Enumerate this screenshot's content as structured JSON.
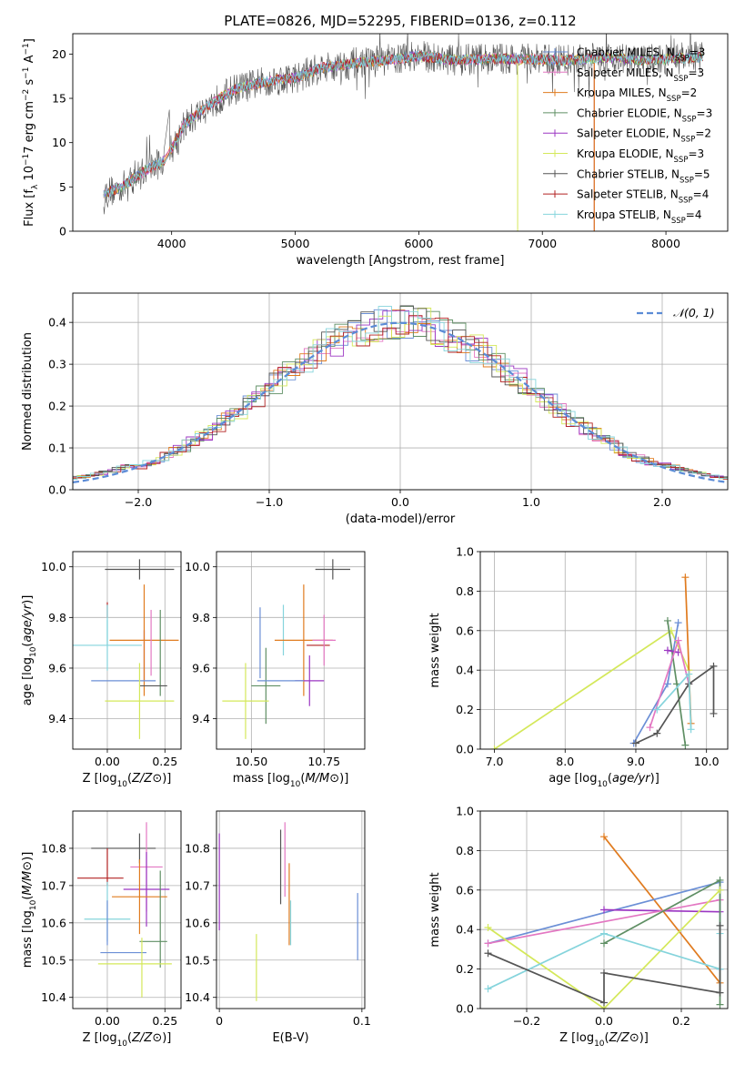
{
  "figure": {
    "title": "PLATE=0826, MJD=52295, FIBERID=0136, z=0.112"
  },
  "colors": {
    "Chabrier MILES": "#6b8fd6",
    "Salpeter MILES": "#e377c2",
    "Kroupa MILES": "#e07b1f",
    "Chabrier ELODIE": "#5f8f64",
    "Salpeter ELODIE": "#9b36c2",
    "Kroupa ELODIE": "#d4e85a",
    "Chabrier STELIB": "#555555",
    "Salpeter STELIB": "#b22222",
    "Kroupa STELIB": "#85d4dc",
    "gaussian": "#5b8bd6"
  },
  "legend": {
    "spectrum": [
      {
        "model": "Chabrier MILES",
        "label": "Chabrier MILES, N",
        "sub": "SSP",
        "tail": "=3"
      },
      {
        "model": "Salpeter MILES",
        "label": "Salpeter MILES, N",
        "sub": "SSP",
        "tail": "=3"
      },
      {
        "model": "Kroupa MILES",
        "label": "Kroupa MILES, N",
        "sub": "SSP",
        "tail": "=2"
      },
      {
        "model": "Chabrier ELODIE",
        "label": "Chabrier ELODIE, N",
        "sub": "SSP",
        "tail": "=3"
      },
      {
        "model": "Salpeter ELODIE",
        "label": "Salpeter ELODIE, N",
        "sub": "SSP",
        "tail": "=2"
      },
      {
        "model": "Kroupa ELODIE",
        "label": "Kroupa ELODIE, N",
        "sub": "SSP",
        "tail": "=3"
      },
      {
        "model": "Chabrier STELIB",
        "label": "Chabrier STELIB, N",
        "sub": "SSP",
        "tail": "=5"
      },
      {
        "model": "Salpeter STELIB",
        "label": "Salpeter STELIB, N",
        "sub": "SSP",
        "tail": "=4"
      },
      {
        "model": "Kroupa STELIB",
        "label": "Kroupa STELIB, N",
        "sub": "SSP",
        "tail": "=4"
      }
    ],
    "histogram": "𝒩(0, 1)"
  },
  "chart_data": [
    {
      "id": "spectrum",
      "type": "line",
      "xlabel": "wavelength [Angstrom, rest frame]",
      "ylabel": "Flux [f_λ 10^-17 erg cm^-2 s^-1 A^-1]",
      "xlim": [
        3200,
        8500
      ],
      "ylim": [
        0,
        22.3
      ],
      "xticks": [
        4000,
        5000,
        6000,
        7000,
        8000
      ],
      "yticks": [
        0,
        5,
        10,
        15,
        20
      ],
      "grid": false,
      "legend_position": "right",
      "continuum_approx": {
        "x": [
          3450,
          3600,
          3800,
          3950,
          4100,
          4300,
          4500,
          4800,
          5000,
          5200,
          5500,
          5800,
          6000,
          6300,
          6600,
          6900,
          7200,
          7500,
          7800,
          8100,
          8300
        ],
        "y": [
          4.2,
          5.0,
          7.0,
          8.0,
          12.0,
          14.2,
          16.0,
          17.0,
          17.3,
          18.4,
          19.0,
          19.4,
          19.8,
          19.3,
          19.5,
          19.4,
          19.3,
          19.6,
          19.3,
          19.5,
          19.7
        ]
      },
      "dropouts": [
        {
          "x": 6800,
          "model": "Kroupa ELODIE"
        },
        {
          "x": 7420,
          "model": "Salpeter STELIB"
        },
        {
          "x": 7420,
          "model": "Kroupa MILES"
        }
      ]
    },
    {
      "id": "residual_histogram",
      "type": "bar",
      "xlabel": "(data-model)/error",
      "ylabel": "Normed distribution",
      "xlim": [
        -2.5,
        2.5
      ],
      "ylim": [
        0,
        0.47
      ],
      "xticks": [
        -2,
        -1,
        0,
        1,
        2
      ],
      "yticks": [
        0.0,
        0.1,
        0.2,
        0.3,
        0.4
      ],
      "grid": true,
      "legend_position": "upper right",
      "bin_width": 0.1,
      "gaussian": {
        "mu": 0,
        "sigma": 1
      }
    },
    {
      "id": "age_vs_Z",
      "type": "scatter",
      "xlabel": "Z [log10(Z/Z⊙)]",
      "ylabel": "age [log10(age/yr)]",
      "xlim": [
        -0.15,
        0.32
      ],
      "ylim": [
        9.28,
        10.06
      ],
      "xticks": [
        0.0,
        0.25
      ],
      "yticks": [
        9.4,
        9.6,
        9.8,
        10.0
      ],
      "grid": true,
      "points": [
        {
          "model": "Chabrier STELIB",
          "x": 0.14,
          "xerr": 0.15,
          "y": 9.99,
          "yerr": 0.04
        },
        {
          "model": "Salpeter STELIB",
          "x": 0.0,
          "xerr": 0.0,
          "y": 9.83,
          "yerr": 0.03
        },
        {
          "model": "Kroupa STELIB",
          "x": 0.0,
          "xerr": 0.0,
          "y": 9.77,
          "yerr": 0.08
        },
        {
          "model": "Salpeter ELODIE",
          "x": 0.16,
          "xerr": 0.0,
          "y": 9.65,
          "yerr": 0.1
        },
        {
          "model": "Kroupa MILES",
          "x": 0.16,
          "xerr": 0.15,
          "y": 9.71,
          "yerr": 0.22
        },
        {
          "model": "Kroupa STELIB",
          "x": 0.0,
          "xerr": 0.15,
          "y": 9.69,
          "yerr": 0.1
        },
        {
          "model": "Chabrier ELODIE",
          "x": 0.23,
          "xerr": 0.0,
          "y": 9.66,
          "yerr": 0.17
        },
        {
          "model": "Salpeter MILES",
          "x": 0.19,
          "xerr": 0.0,
          "y": 9.7,
          "yerr": 0.13
        },
        {
          "model": "Chabrier MILES",
          "x": 0.07,
          "xerr": 0.14,
          "y": 9.55,
          "yerr": 0.0
        },
        {
          "model": "Chabrier STELIB",
          "x": 0.2,
          "xerr": 0.06,
          "y": 9.53,
          "yerr": 0.0
        },
        {
          "model": "Kroupa ELODIE",
          "x": 0.14,
          "xerr": 0.15,
          "y": 9.47,
          "yerr": 0.15
        }
      ]
    },
    {
      "id": "age_vs_mass",
      "type": "scatter",
      "xlabel": "mass [log10(M/M⊙)]",
      "ylabel": "",
      "xlim": [
        10.38,
        10.89
      ],
      "ylim": [
        9.28,
        10.06
      ],
      "xticks": [
        10.5,
        10.75
      ],
      "yticks": [
        9.4,
        9.6,
        9.8,
        10.0
      ],
      "grid": true,
      "points": [
        {
          "model": "Chabrier STELIB",
          "x": 10.78,
          "xerr": 0.06,
          "y": 9.99,
          "yerr": 0.04
        },
        {
          "model": "Kroupa MILES",
          "x": 10.68,
          "xerr": 0.0,
          "y": 9.71,
          "yerr": 0.22
        },
        {
          "model": "Chabrier MILES",
          "x": 10.53,
          "xerr": 0.0,
          "y": 9.7,
          "yerr": 0.14
        },
        {
          "model": "Kroupa STELIB",
          "x": 10.61,
          "xerr": 0.0,
          "y": 9.75,
          "yerr": 0.1
        },
        {
          "model": "Salpeter STELIB",
          "x": 10.73,
          "xerr": 0.04,
          "y": 9.69,
          "yerr": 0.0
        },
        {
          "model": "Kroupa MILES",
          "x": 10.68,
          "xerr": 0.1,
          "y": 9.71,
          "yerr": 0.0
        },
        {
          "model": "Salpeter MILES",
          "x": 10.75,
          "xerr": 0.04,
          "y": 9.71,
          "yerr": 0.1
        },
        {
          "model": "Salpeter ELODIE",
          "x": 10.7,
          "xerr": 0.05,
          "y": 9.55,
          "yerr": 0.1
        },
        {
          "model": "Chabrier ELODIE",
          "x": 10.55,
          "xerr": 0.05,
          "y": 9.53,
          "yerr": 0.15
        },
        {
          "model": "Chabrier MILES",
          "x": 10.6,
          "xerr": 0.08,
          "y": 9.55,
          "yerr": 0.0
        },
        {
          "model": "Kroupa ELODIE",
          "x": 10.48,
          "xerr": 0.08,
          "y": 9.47,
          "yerr": 0.15
        }
      ]
    },
    {
      "id": "massweight_vs_age",
      "type": "line",
      "xlabel": "age [log10(age/yr)]",
      "ylabel": "mass weight",
      "xlim": [
        6.8,
        10.3
      ],
      "ylim": [
        0,
        1.0
      ],
      "xticks": [
        7,
        8,
        9,
        10
      ],
      "yticks": [
        0.0,
        0.2,
        0.4,
        0.6,
        0.8,
        1.0
      ],
      "grid": true,
      "series": [
        {
          "model": "Kroupa ELODIE",
          "x": [
            7.0,
            9.5,
            9.75
          ],
          "y": [
            0.0,
            0.6,
            0.4
          ]
        },
        {
          "model": "Kroupa MILES",
          "x": [
            9.7,
            9.78
          ],
          "y": [
            0.87,
            0.13
          ]
        },
        {
          "model": "Chabrier MILES",
          "x": [
            8.97,
            9.45,
            9.6
          ],
          "y": [
            0.03,
            0.33,
            0.64
          ]
        },
        {
          "model": "Chabrier ELODIE",
          "x": [
            9.45,
            9.58,
            9.7
          ],
          "y": [
            0.65,
            0.33,
            0.02
          ]
        },
        {
          "model": "Salpeter ELODIE",
          "x": [
            9.45,
            9.6
          ],
          "y": [
            0.5,
            0.49
          ]
        },
        {
          "model": "Salpeter MILES",
          "x": [
            9.2,
            9.6,
            9.75
          ],
          "y": [
            0.11,
            0.55,
            0.33
          ]
        },
        {
          "model": "Chabrier STELIB",
          "x": [
            9.0,
            9.3,
            9.75,
            10.1,
            10.1
          ],
          "y": [
            0.03,
            0.08,
            0.33,
            0.42,
            0.18
          ]
        },
        {
          "model": "Kroupa STELIB",
          "x": [
            9.3,
            9.75,
            9.78
          ],
          "y": [
            0.2,
            0.38,
            0.1
          ]
        }
      ]
    },
    {
      "id": "mass_vs_Z",
      "type": "scatter",
      "xlabel": "Z [log10(Z/Z⊙)]",
      "ylabel": "mass [log10(M/M⊙)]",
      "xlim": [
        -0.15,
        0.32
      ],
      "ylim": [
        10.37,
        10.9
      ],
      "xticks": [
        0.0,
        0.25
      ],
      "yticks": [
        10.4,
        10.5,
        10.6,
        10.7,
        10.8
      ],
      "grid": true,
      "points": [
        {
          "model": "Chabrier STELIB",
          "x": 0.07,
          "xerr": 0.14,
          "y": 10.8,
          "yerr": 0.0
        },
        {
          "model": "Chabrier STELIB",
          "x": 0.14,
          "xerr": 0.0,
          "y": 10.8,
          "yerr": 0.04
        },
        {
          "model": "Salpeter MILES",
          "x": 0.17,
          "xerr": 0.07,
          "y": 10.75,
          "yerr": 0.12
        },
        {
          "model": "Salpeter STELIB",
          "x": -0.03,
          "xerr": 0.1,
          "y": 10.72,
          "yerr": 0.0
        },
        {
          "model": "Salpeter STELIB",
          "x": 0.0,
          "xerr": 0.0,
          "y": 10.75,
          "yerr": 0.05
        },
        {
          "model": "Salpeter ELODIE",
          "x": 0.17,
          "xerr": 0.1,
          "y": 10.69,
          "yerr": 0.1
        },
        {
          "model": "Kroupa MILES",
          "x": 0.14,
          "xerr": 0.12,
          "y": 10.67,
          "yerr": 0.1
        },
        {
          "model": "Kroupa STELIB",
          "x": 0.0,
          "xerr": 0.1,
          "y": 10.61,
          "yerr": 0.0
        },
        {
          "model": "Kroupa STELIB",
          "x": 0.0,
          "xerr": 0.0,
          "y": 10.63,
          "yerr": 0.08
        },
        {
          "model": "Chabrier ELODIE",
          "x": 0.2,
          "xerr": 0.06,
          "y": 10.55,
          "yerr": 0.0
        },
        {
          "model": "Chabrier ELODIE",
          "x": 0.23,
          "xerr": 0.0,
          "y": 10.61,
          "yerr": 0.13
        },
        {
          "model": "Chabrier MILES",
          "x": 0.07,
          "xerr": 0.1,
          "y": 10.52,
          "yerr": 0.0
        },
        {
          "model": "Chabrier MILES",
          "x": 0.0,
          "xerr": 0.0,
          "y": 10.6,
          "yerr": 0.06
        },
        {
          "model": "Kroupa ELODIE",
          "x": 0.12,
          "xerr": 0.16,
          "y": 10.49,
          "yerr": 0.0
        },
        {
          "model": "Kroupa ELODIE",
          "x": 0.15,
          "xerr": 0.0,
          "y": 10.48,
          "yerr": 0.08
        }
      ]
    },
    {
      "id": "mass_vs_EBV",
      "type": "scatter",
      "xlabel": "E(B-V)",
      "ylabel": "",
      "xlim": [
        -0.002,
        0.102
      ],
      "ylim": [
        10.37,
        10.9
      ],
      "xticks": [
        0,
        0.1
      ],
      "yticks": [
        10.4,
        10.5,
        10.6,
        10.7,
        10.8
      ],
      "grid": true,
      "points": [
        {
          "model": "Salpeter ELODIE",
          "x": 0.0,
          "y": 10.71,
          "yerr": 0.13
        },
        {
          "model": "Kroupa ELODIE",
          "x": 0.026,
          "y": 10.48,
          "yerr": 0.09
        },
        {
          "model": "Chabrier STELIB",
          "x": 0.043,
          "y": 10.75,
          "yerr": 0.1
        },
        {
          "model": "Salpeter MILES",
          "x": 0.046,
          "y": 10.77,
          "yerr": 0.1
        },
        {
          "model": "Kroupa MILES",
          "x": 0.049,
          "y": 10.65,
          "yerr": 0.11
        },
        {
          "model": "Kroupa STELIB",
          "x": 0.05,
          "y": 10.6,
          "yerr": 0.06
        },
        {
          "model": "Chabrier MILES",
          "x": 0.097,
          "y": 10.59,
          "yerr": 0.09
        }
      ]
    },
    {
      "id": "massweight_vs_Z",
      "type": "line",
      "xlabel": "Z [log10(Z/Z⊙)]",
      "ylabel": "mass weight",
      "xlim": [
        -0.32,
        0.32
      ],
      "ylim": [
        0,
        1.0
      ],
      "xticks": [
        -0.2,
        0.0,
        0.2
      ],
      "yticks": [
        0.0,
        0.2,
        0.4,
        0.6,
        0.8,
        1.0
      ],
      "grid": true,
      "series": [
        {
          "model": "Kroupa MILES",
          "x": [
            0.0,
            0.3
          ],
          "y": [
            0.87,
            0.13
          ]
        },
        {
          "model": "Chabrier MILES",
          "x": [
            -0.3,
            0.3,
            0.3
          ],
          "y": [
            0.33,
            0.64,
            0.2
          ]
        },
        {
          "model": "Salpeter ELODIE",
          "x": [
            0.0,
            0.3
          ],
          "y": [
            0.5,
            0.49
          ]
        },
        {
          "model": "Salpeter MILES",
          "x": [
            -0.3,
            0.3
          ],
          "y": [
            0.33,
            0.55
          ]
        },
        {
          "model": "Chabrier ELODIE",
          "x": [
            0.0,
            0.3,
            0.3
          ],
          "y": [
            0.33,
            0.65,
            0.02
          ]
        },
        {
          "model": "Kroupa ELODIE",
          "x": [
            -0.3,
            0.0,
            0.3
          ],
          "y": [
            0.41,
            0.0,
            0.6
          ]
        },
        {
          "model": "Kroupa STELIB",
          "x": [
            -0.3,
            0.0,
            0.3,
            0.3
          ],
          "y": [
            0.1,
            0.38,
            0.2,
            0.38
          ]
        },
        {
          "model": "Chabrier STELIB",
          "x": [
            -0.3,
            0.0,
            0.0,
            0.3,
            0.3
          ],
          "y": [
            0.28,
            0.03,
            0.18,
            0.08,
            0.42
          ]
        }
      ]
    }
  ]
}
